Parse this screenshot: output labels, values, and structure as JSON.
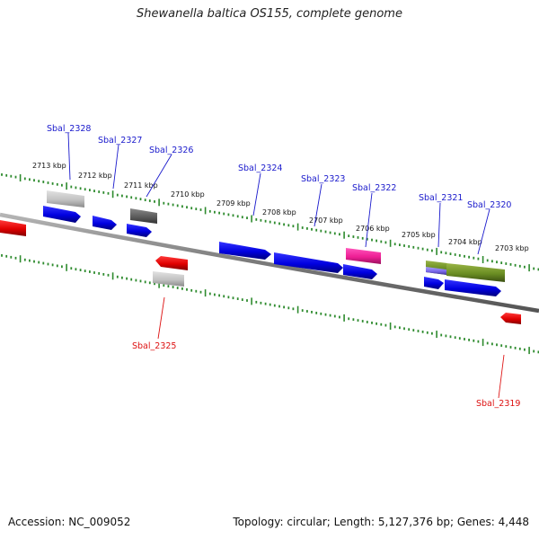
{
  "title": "Shewanella baltica OS155, complete genome",
  "footer": {
    "accession": "Accession: NC_009052",
    "summary": "Topology: circular; Length: 5,127,376 bp; Genes: 4,448"
  },
  "colors": {
    "axis": "#808080",
    "tick": "#2e8b2e",
    "forward_label": "#1a1acc",
    "reverse_label": "#dd1111"
  },
  "kbp_labels": [
    "2713 kbp",
    "2712 kbp",
    "2711 kbp",
    "2710 kbp",
    "2709 kbp",
    "2708 kbp",
    "2707 kbp",
    "2706 kbp",
    "2705 kbp",
    "2704 kbp",
    "2703 kbp"
  ],
  "gene_labels": {
    "forward": [
      "Sbal_2328",
      "Sbal_2327",
      "Sbal_2326",
      "Sbal_2324",
      "Sbal_2323",
      "Sbal_2322",
      "Sbal_2321",
      "Sbal_2320"
    ],
    "reverse": [
      "Sbal_2325",
      "Sbal_2319"
    ]
  }
}
